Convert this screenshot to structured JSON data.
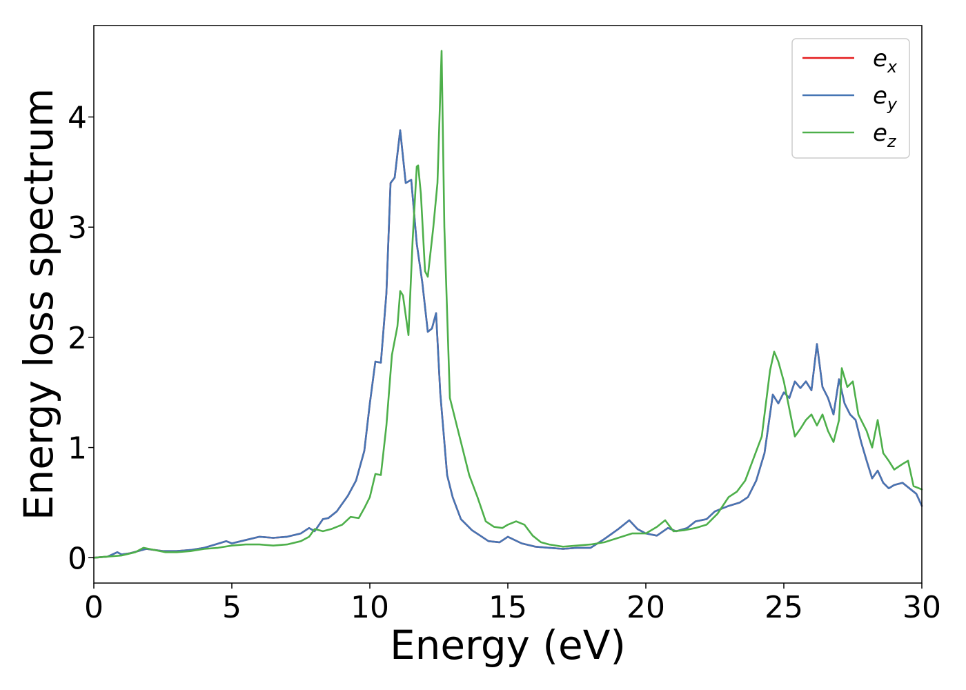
{
  "chart_data": {
    "type": "line",
    "xlabel": "Energy (eV)",
    "ylabel": "Energy loss spectrum",
    "xlim": [
      0,
      30
    ],
    "ylim": [
      -0.23,
      4.83
    ],
    "xticks": [
      0,
      5,
      10,
      15,
      20,
      25,
      30
    ],
    "yticks": [
      0,
      1,
      2,
      3,
      4
    ],
    "grid": false,
    "legend_position": "top-right",
    "series": [
      {
        "name": "e_x",
        "label_main": "e",
        "label_sub": "x",
        "color": "#e41a1c",
        "x": [
          0,
          0.5,
          0.85,
          1.0,
          1.3,
          1.6,
          1.9,
          2.2,
          2.5,
          3.0,
          3.5,
          4.0,
          4.4,
          4.8,
          5.0,
          5.5,
          6.0,
          6.5,
          7.0,
          7.5,
          7.8,
          8.0,
          8.3,
          8.5,
          8.8,
          9.2,
          9.5,
          9.8,
          10.0,
          10.2,
          10.4,
          10.6,
          10.75,
          10.9,
          11.1,
          11.3,
          11.5,
          11.7,
          11.9,
          12.1,
          12.25,
          12.4,
          12.55,
          12.8,
          13.0,
          13.3,
          13.7,
          14.0,
          14.3,
          14.7,
          15.0,
          15.5,
          16.0,
          16.5,
          17.0,
          17.5,
          18.0,
          18.5,
          19.0,
          19.4,
          19.7,
          20.0,
          20.4,
          20.8,
          21.1,
          21.5,
          21.8,
          22.2,
          22.5,
          23.0,
          23.4,
          23.7,
          24.0,
          24.3,
          24.6,
          24.8,
          25.0,
          25.2,
          25.4,
          25.6,
          25.8,
          26.0,
          26.2,
          26.4,
          26.6,
          26.8,
          27.0,
          27.2,
          27.4,
          27.6,
          27.8,
          28.0,
          28.2,
          28.4,
          28.6,
          28.8,
          29.0,
          29.3,
          29.6,
          29.8,
          30.0
        ],
        "y": [
          0.0,
          0.01,
          0.05,
          0.03,
          0.04,
          0.06,
          0.08,
          0.07,
          0.06,
          0.06,
          0.07,
          0.09,
          0.12,
          0.15,
          0.13,
          0.16,
          0.19,
          0.18,
          0.19,
          0.22,
          0.27,
          0.24,
          0.35,
          0.36,
          0.42,
          0.56,
          0.7,
          0.97,
          1.4,
          1.78,
          1.77,
          2.4,
          3.4,
          3.45,
          3.88,
          3.4,
          3.43,
          2.85,
          2.5,
          2.05,
          2.08,
          2.22,
          1.5,
          0.75,
          0.55,
          0.35,
          0.25,
          0.2,
          0.15,
          0.14,
          0.19,
          0.13,
          0.1,
          0.09,
          0.08,
          0.09,
          0.09,
          0.17,
          0.26,
          0.34,
          0.26,
          0.22,
          0.2,
          0.27,
          0.24,
          0.27,
          0.33,
          0.35,
          0.42,
          0.47,
          0.5,
          0.55,
          0.7,
          0.95,
          1.48,
          1.4,
          1.5,
          1.45,
          1.6,
          1.54,
          1.6,
          1.52,
          1.94,
          1.55,
          1.45,
          1.3,
          1.62,
          1.4,
          1.3,
          1.25,
          1.05,
          0.88,
          0.72,
          0.79,
          0.68,
          0.63,
          0.66,
          0.68,
          0.62,
          0.58,
          0.47
        ]
      },
      {
        "name": "e_y",
        "label_main": "e",
        "label_sub": "y",
        "color": "#4575b4",
        "x": [
          0,
          0.5,
          0.85,
          1.0,
          1.3,
          1.6,
          1.9,
          2.2,
          2.5,
          3.0,
          3.5,
          4.0,
          4.4,
          4.8,
          5.0,
          5.5,
          6.0,
          6.5,
          7.0,
          7.5,
          7.8,
          8.0,
          8.3,
          8.5,
          8.8,
          9.2,
          9.5,
          9.8,
          10.0,
          10.2,
          10.4,
          10.6,
          10.75,
          10.9,
          11.1,
          11.3,
          11.5,
          11.7,
          11.9,
          12.1,
          12.25,
          12.4,
          12.55,
          12.8,
          13.0,
          13.3,
          13.7,
          14.0,
          14.3,
          14.7,
          15.0,
          15.5,
          16.0,
          16.5,
          17.0,
          17.5,
          18.0,
          18.5,
          19.0,
          19.4,
          19.7,
          20.0,
          20.4,
          20.8,
          21.1,
          21.5,
          21.8,
          22.2,
          22.5,
          23.0,
          23.4,
          23.7,
          24.0,
          24.3,
          24.6,
          24.8,
          25.0,
          25.2,
          25.4,
          25.6,
          25.8,
          26.0,
          26.2,
          26.4,
          26.6,
          26.8,
          27.0,
          27.2,
          27.4,
          27.6,
          27.8,
          28.0,
          28.2,
          28.4,
          28.6,
          28.8,
          29.0,
          29.3,
          29.6,
          29.8,
          30.0
        ],
        "y": [
          0.0,
          0.01,
          0.05,
          0.03,
          0.04,
          0.06,
          0.08,
          0.07,
          0.06,
          0.06,
          0.07,
          0.09,
          0.12,
          0.15,
          0.13,
          0.16,
          0.19,
          0.18,
          0.19,
          0.22,
          0.27,
          0.24,
          0.35,
          0.36,
          0.42,
          0.56,
          0.7,
          0.97,
          1.4,
          1.78,
          1.77,
          2.4,
          3.4,
          3.45,
          3.88,
          3.4,
          3.43,
          2.85,
          2.5,
          2.05,
          2.08,
          2.22,
          1.5,
          0.75,
          0.55,
          0.35,
          0.25,
          0.2,
          0.15,
          0.14,
          0.19,
          0.13,
          0.1,
          0.09,
          0.08,
          0.09,
          0.09,
          0.17,
          0.26,
          0.34,
          0.26,
          0.22,
          0.2,
          0.27,
          0.24,
          0.27,
          0.33,
          0.35,
          0.42,
          0.47,
          0.5,
          0.55,
          0.7,
          0.95,
          1.48,
          1.4,
          1.5,
          1.45,
          1.6,
          1.54,
          1.6,
          1.52,
          1.94,
          1.55,
          1.45,
          1.3,
          1.62,
          1.4,
          1.3,
          1.25,
          1.05,
          0.88,
          0.72,
          0.79,
          0.68,
          0.63,
          0.66,
          0.68,
          0.62,
          0.58,
          0.47
        ]
      },
      {
        "name": "e_z",
        "label_main": "e",
        "label_sub": "z",
        "color": "#4daf4a",
        "x": [
          0,
          0.5,
          1.0,
          1.5,
          1.8,
          2.2,
          2.6,
          3.0,
          3.5,
          4.0,
          4.5,
          5.0,
          5.5,
          6.0,
          6.5,
          7.0,
          7.5,
          7.8,
          8.0,
          8.3,
          8.6,
          9.0,
          9.3,
          9.6,
          9.8,
          10.0,
          10.2,
          10.4,
          10.6,
          10.8,
          11.0,
          11.1,
          11.2,
          11.4,
          11.55,
          11.7,
          11.75,
          11.85,
          12.0,
          12.1,
          12.3,
          12.45,
          12.6,
          12.7,
          12.9,
          13.1,
          13.3,
          13.6,
          13.9,
          14.2,
          14.5,
          14.8,
          15.0,
          15.3,
          15.6,
          15.9,
          16.2,
          16.5,
          17.0,
          17.5,
          18.0,
          18.5,
          19.0,
          19.5,
          20.0,
          20.4,
          20.7,
          21.0,
          21.4,
          21.8,
          22.2,
          22.6,
          23.0,
          23.3,
          23.6,
          23.9,
          24.2,
          24.5,
          24.65,
          24.8,
          25.0,
          25.2,
          25.4,
          25.6,
          25.8,
          26.0,
          26.2,
          26.4,
          26.6,
          26.8,
          27.0,
          27.1,
          27.3,
          27.5,
          27.7,
          28.0,
          28.2,
          28.4,
          28.6,
          28.8,
          29.0,
          29.3,
          29.5,
          29.7,
          30.0
        ],
        "y": [
          0.0,
          0.01,
          0.02,
          0.05,
          0.09,
          0.07,
          0.05,
          0.05,
          0.06,
          0.08,
          0.09,
          0.11,
          0.12,
          0.12,
          0.11,
          0.12,
          0.15,
          0.19,
          0.26,
          0.24,
          0.26,
          0.3,
          0.37,
          0.36,
          0.45,
          0.55,
          0.76,
          0.75,
          1.2,
          1.84,
          2.1,
          2.42,
          2.38,
          2.02,
          2.88,
          3.55,
          3.56,
          3.3,
          2.6,
          2.55,
          3.0,
          3.4,
          4.6,
          3.0,
          1.45,
          1.25,
          1.05,
          0.75,
          0.55,
          0.33,
          0.28,
          0.27,
          0.3,
          0.33,
          0.3,
          0.2,
          0.14,
          0.12,
          0.1,
          0.11,
          0.12,
          0.14,
          0.18,
          0.22,
          0.22,
          0.28,
          0.34,
          0.24,
          0.25,
          0.27,
          0.3,
          0.4,
          0.55,
          0.6,
          0.7,
          0.9,
          1.1,
          1.7,
          1.87,
          1.78,
          1.6,
          1.35,
          1.1,
          1.17,
          1.25,
          1.3,
          1.2,
          1.3,
          1.15,
          1.05,
          1.25,
          1.72,
          1.55,
          1.6,
          1.3,
          1.15,
          1.0,
          1.25,
          0.95,
          0.88,
          0.8,
          0.85,
          0.88,
          0.65,
          0.62
        ]
      }
    ]
  }
}
